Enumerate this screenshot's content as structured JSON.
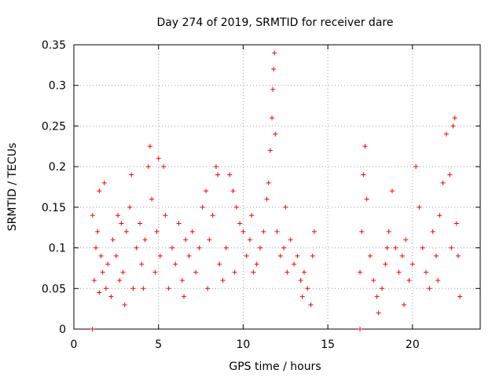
{
  "chart_data": {
    "type": "scatter",
    "title": "Day 274 of 2019, SRMTID for receiver dare",
    "xlabel": "GPS time / hours",
    "ylabel": "SRMTID / TECUs",
    "xlim": [
      0,
      24
    ],
    "ylim": [
      0,
      0.35
    ],
    "x_ticks": [
      0,
      5,
      10,
      15,
      20
    ],
    "x_tick_labels": [
      "0",
      "5",
      "10",
      "15",
      "20"
    ],
    "y_ticks": [
      0,
      0.05,
      0.1,
      0.15,
      0.2,
      0.25,
      0.3,
      0.35
    ],
    "y_tick_labels": [
      "0",
      "0.05",
      "0.1",
      "0.15",
      "0.2",
      "0.25",
      "0.3",
      "0.35"
    ],
    "grid": true,
    "marker": "+",
    "color": "#ff0000",
    "series": [
      {
        "name": "SRMTID",
        "points": [
          [
            1.1,
            0.0
          ],
          [
            1.1,
            0.14
          ],
          [
            1.2,
            0.06
          ],
          [
            1.3,
            0.1
          ],
          [
            1.4,
            0.12
          ],
          [
            1.5,
            0.17
          ],
          [
            1.6,
            0.09
          ],
          [
            1.7,
            0.07
          ],
          [
            1.8,
            0.18
          ],
          [
            1.9,
            0.05
          ],
          [
            2.0,
            0.08
          ],
          [
            2.2,
            0.04
          ],
          [
            2.3,
            0.11
          ],
          [
            2.5,
            0.09
          ],
          [
            2.6,
            0.14
          ],
          [
            2.7,
            0.06
          ],
          [
            2.9,
            0.07
          ],
          [
            3.0,
            0.03
          ],
          [
            3.1,
            0.12
          ],
          [
            3.3,
            0.15
          ],
          [
            3.4,
            0.19
          ],
          [
            3.5,
            0.05
          ],
          [
            3.7,
            0.1
          ],
          [
            3.9,
            0.13
          ],
          [
            4.0,
            0.08
          ],
          [
            4.2,
            0.11
          ],
          [
            4.4,
            0.2
          ],
          [
            4.5,
            0.225
          ],
          [
            4.6,
            0.16
          ],
          [
            4.8,
            0.07
          ],
          [
            4.9,
            0.12
          ],
          [
            5.0,
            0.21
          ],
          [
            5.1,
            0.09
          ],
          [
            5.3,
            0.2
          ],
          [
            5.4,
            0.14
          ],
          [
            5.6,
            0.05
          ],
          [
            5.8,
            0.1
          ],
          [
            6.0,
            0.08
          ],
          [
            6.2,
            0.13
          ],
          [
            6.4,
            0.06
          ],
          [
            6.6,
            0.11
          ],
          [
            6.8,
            0.09
          ],
          [
            7.0,
            0.12
          ],
          [
            7.2,
            0.07
          ],
          [
            7.4,
            0.1
          ],
          [
            7.6,
            0.15
          ],
          [
            7.8,
            0.17
          ],
          [
            8.0,
            0.11
          ],
          [
            8.2,
            0.14
          ],
          [
            8.4,
            0.2
          ],
          [
            8.5,
            0.19
          ],
          [
            8.6,
            0.08
          ],
          [
            8.8,
            0.06
          ],
          [
            9.0,
            0.1
          ],
          [
            9.2,
            0.19
          ],
          [
            9.4,
            0.17
          ],
          [
            9.6,
            0.15
          ],
          [
            9.8,
            0.13
          ],
          [
            10.0,
            0.12
          ],
          [
            10.2,
            0.09
          ],
          [
            10.4,
            0.11
          ],
          [
            10.6,
            0.07
          ],
          [
            10.8,
            0.08
          ],
          [
            11.0,
            0.1
          ],
          [
            11.2,
            0.12
          ],
          [
            11.4,
            0.16
          ],
          [
            11.5,
            0.18
          ],
          [
            11.6,
            0.22
          ],
          [
            11.7,
            0.26
          ],
          [
            11.75,
            0.295
          ],
          [
            11.8,
            0.32
          ],
          [
            11.85,
            0.34
          ],
          [
            11.9,
            0.24
          ],
          [
            12.0,
            0.12
          ],
          [
            12.2,
            0.09
          ],
          [
            12.4,
            0.1
          ],
          [
            12.6,
            0.07
          ],
          [
            12.8,
            0.11
          ],
          [
            13.0,
            0.08
          ],
          [
            13.2,
            0.09
          ],
          [
            13.4,
            0.06
          ],
          [
            13.6,
            0.07
          ],
          [
            13.8,
            0.05
          ],
          [
            14.0,
            0.03
          ],
          [
            14.1,
            0.09
          ],
          [
            14.2,
            0.12
          ],
          [
            16.9,
            0.0
          ],
          [
            16.9,
            0.07
          ],
          [
            17.0,
            0.12
          ],
          [
            17.1,
            0.19
          ],
          [
            17.2,
            0.225
          ],
          [
            17.3,
            0.16
          ],
          [
            17.5,
            0.09
          ],
          [
            17.7,
            0.06
          ],
          [
            17.9,
            0.04
          ],
          [
            18.0,
            0.02
          ],
          [
            18.2,
            0.05
          ],
          [
            18.4,
            0.08
          ],
          [
            18.6,
            0.12
          ],
          [
            18.8,
            0.17
          ],
          [
            19.0,
            0.1
          ],
          [
            19.2,
            0.07
          ],
          [
            19.4,
            0.09
          ],
          [
            19.6,
            0.11
          ],
          [
            19.8,
            0.06
          ],
          [
            20.0,
            0.08
          ],
          [
            20.2,
            0.2
          ],
          [
            20.4,
            0.15
          ],
          [
            20.6,
            0.1
          ],
          [
            20.8,
            0.07
          ],
          [
            21.0,
            0.05
          ],
          [
            21.2,
            0.12
          ],
          [
            21.4,
            0.09
          ],
          [
            21.6,
            0.14
          ],
          [
            21.8,
            0.18
          ],
          [
            22.0,
            0.24
          ],
          [
            22.2,
            0.19
          ],
          [
            22.4,
            0.25
          ],
          [
            22.5,
            0.26
          ],
          [
            22.6,
            0.13
          ],
          [
            22.7,
            0.09
          ],
          [
            22.8,
            0.04
          ],
          [
            1.5,
            0.045
          ],
          [
            2.8,
            0.13
          ],
          [
            4.1,
            0.05
          ],
          [
            6.5,
            0.04
          ],
          [
            7.9,
            0.05
          ],
          [
            9.5,
            0.07
          ],
          [
            10.5,
            0.14
          ],
          [
            12.5,
            0.15
          ],
          [
            13.5,
            0.04
          ],
          [
            18.5,
            0.1
          ],
          [
            19.5,
            0.03
          ],
          [
            21.5,
            0.06
          ],
          [
            22.3,
            0.1
          ]
        ]
      }
    ]
  }
}
